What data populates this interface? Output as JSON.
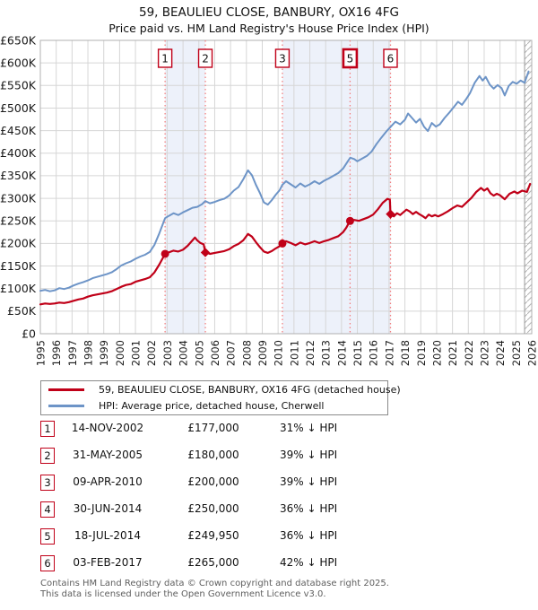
{
  "title": "59, BEAULIEU CLOSE, BANBURY, OX16 4FG",
  "subtitle": "Price paid vs. HM Land Registry's House Price Index (HPI)",
  "legend": {
    "series1": "59, BEAULIEU CLOSE, BANBURY, OX16 4FG (detached house)",
    "series2": "HPI: Average price, detached house, Cherwell"
  },
  "colors": {
    "price_line": "#c00018",
    "hpi_line": "#6d94c7",
    "band": "#edf1fa",
    "dotted_line": "#f28080",
    "grid": "#d6d6d6",
    "plot_border": "#b0b0b0",
    "hatch": "#b5b5b5"
  },
  "transactions": [
    {
      "n": "1",
      "date": "14-NOV-2002",
      "price": "£177,000",
      "delta": "31% ↓ HPI",
      "year": 2002.87,
      "value": 177,
      "marker": "circle",
      "show_box": true,
      "bold_box": false
    },
    {
      "n": "2",
      "date": "31-MAY-2005",
      "price": "£180,000",
      "delta": "39% ↓ HPI",
      "year": 2005.41,
      "value": 180,
      "marker": "diamond",
      "show_box": true,
      "bold_box": false
    },
    {
      "n": "3",
      "date": "09-APR-2010",
      "price": "£200,000",
      "delta": "39% ↓ HPI",
      "year": 2010.27,
      "value": 200,
      "marker": "circle",
      "show_box": true,
      "bold_box": false
    },
    {
      "n": "4",
      "date": "30-JUN-2014",
      "price": "£250,000",
      "delta": "36% ↓ HPI",
      "year": 2014.49,
      "value": 250,
      "marker": "none",
      "show_box": false,
      "bold_box": false
    },
    {
      "n": "5",
      "date": "18-JUL-2014",
      "price": "£249,950",
      "delta": "36% ↓ HPI",
      "year": 2014.54,
      "value": 249.95,
      "marker": "circle",
      "show_box": true,
      "bold_box": true
    },
    {
      "n": "6",
      "date": "03-FEB-2017",
      "price": "£265,000",
      "delta": "42% ↓ HPI",
      "year": 2017.09,
      "value": 265,
      "marker": "diamond",
      "show_box": true,
      "bold_box": false
    }
  ],
  "footer": {
    "line1": "Contains HM Land Registry data © Crown copyright and database right 2025.",
    "line2": "This data is licensed under the Open Government Licence v3.0."
  },
  "chart_data": {
    "type": "line",
    "title": "59, BEAULIEU CLOSE, BANBURY, OX16 4FG",
    "subtitle": "Price paid vs. HM Land Registry's House Price Index (HPI)",
    "units": "GBP thousands",
    "x_axis": {
      "min": 1995,
      "max": 2026,
      "years": [
        "1995",
        "1996",
        "1997",
        "1998",
        "1999",
        "2000",
        "2001",
        "2002",
        "2003",
        "2004",
        "2005",
        "2006",
        "2007",
        "2008",
        "2009",
        "2010",
        "2011",
        "2012",
        "2013",
        "2014",
        "2015",
        "2016",
        "2017",
        "2018",
        "2019",
        "2020",
        "2021",
        "2022",
        "2023",
        "2024",
        "2025",
        "2026"
      ]
    },
    "y_axis": {
      "min": 0,
      "max": 650,
      "tick_step": 50,
      "tick_labels": [
        "£0",
        "£50K",
        "£100K",
        "£150K",
        "£200K",
        "£250K",
        "£300K",
        "£350K",
        "£400K",
        "£450K",
        "£500K",
        "£550K",
        "£600K",
        "£650K"
      ]
    },
    "bands": [
      [
        2002.87,
        2005.41
      ],
      [
        2010.27,
        2017.09
      ]
    ],
    "hatch_from": 2025.55,
    "legend_position": "below",
    "grid": true,
    "series": [
      {
        "name": "59, BEAULIEU CLOSE, BANBURY, OX16 4FG (detached house)",
        "color": "#c00018",
        "points": [
          [
            1995.0,
            65
          ],
          [
            1995.3,
            67
          ],
          [
            1995.6,
            66
          ],
          [
            1995.9,
            67
          ],
          [
            1996.2,
            69
          ],
          [
            1996.5,
            68
          ],
          [
            1996.8,
            70
          ],
          [
            1997.1,
            73
          ],
          [
            1997.4,
            76
          ],
          [
            1997.7,
            78
          ],
          [
            1998.0,
            82
          ],
          [
            1998.3,
            85
          ],
          [
            1998.6,
            87
          ],
          [
            1998.9,
            89
          ],
          [
            1999.2,
            91
          ],
          [
            1999.5,
            94
          ],
          [
            1999.8,
            99
          ],
          [
            2000.1,
            104
          ],
          [
            2000.4,
            108
          ],
          [
            2000.7,
            110
          ],
          [
            2001.0,
            115
          ],
          [
            2001.3,
            118
          ],
          [
            2001.6,
            121
          ],
          [
            2001.9,
            125
          ],
          [
            2002.2,
            136
          ],
          [
            2002.5,
            153
          ],
          [
            2002.87,
            177
          ],
          [
            2003.1,
            180
          ],
          [
            2003.4,
            184
          ],
          [
            2003.7,
            182
          ],
          [
            2004.0,
            186
          ],
          [
            2004.3,
            195
          ],
          [
            2004.6,
            207
          ],
          [
            2004.75,
            213
          ],
          [
            2004.9,
            207
          ],
          [
            2005.1,
            201
          ],
          [
            2005.3,
            198
          ],
          [
            2005.41,
            180
          ],
          [
            2005.7,
            177
          ],
          [
            2006.0,
            179
          ],
          [
            2006.3,
            181
          ],
          [
            2006.6,
            183
          ],
          [
            2006.9,
            187
          ],
          [
            2007.2,
            194
          ],
          [
            2007.5,
            199
          ],
          [
            2007.8,
            207
          ],
          [
            2008.1,
            221
          ],
          [
            2008.35,
            215
          ],
          [
            2008.6,
            203
          ],
          [
            2008.85,
            192
          ],
          [
            2009.1,
            182
          ],
          [
            2009.35,
            179
          ],
          [
            2009.6,
            183
          ],
          [
            2009.85,
            189
          ],
          [
            2010.1,
            194
          ],
          [
            2010.27,
            200
          ],
          [
            2010.5,
            205
          ],
          [
            2010.8,
            201
          ],
          [
            2011.1,
            196
          ],
          [
            2011.4,
            202
          ],
          [
            2011.7,
            198
          ],
          [
            2012.0,
            201
          ],
          [
            2012.3,
            205
          ],
          [
            2012.6,
            201
          ],
          [
            2012.9,
            205
          ],
          [
            2013.2,
            208
          ],
          [
            2013.5,
            212
          ],
          [
            2013.8,
            216
          ],
          [
            2014.1,
            225
          ],
          [
            2014.3,
            235
          ],
          [
            2014.54,
            250
          ],
          [
            2014.8,
            252
          ],
          [
            2015.1,
            250
          ],
          [
            2015.4,
            254
          ],
          [
            2015.7,
            258
          ],
          [
            2016.0,
            264
          ],
          [
            2016.3,
            276
          ],
          [
            2016.6,
            290
          ],
          [
            2016.9,
            299
          ],
          [
            2017.05,
            297
          ],
          [
            2017.09,
            265
          ],
          [
            2017.3,
            260
          ],
          [
            2017.5,
            267
          ],
          [
            2017.7,
            263
          ],
          [
            2017.9,
            269
          ],
          [
            2018.1,
            275
          ],
          [
            2018.3,
            271
          ],
          [
            2018.5,
            265
          ],
          [
            2018.7,
            270
          ],
          [
            2018.9,
            265
          ],
          [
            2019.1,
            261
          ],
          [
            2019.3,
            256
          ],
          [
            2019.5,
            264
          ],
          [
            2019.7,
            260
          ],
          [
            2019.9,
            263
          ],
          [
            2020.1,
            260
          ],
          [
            2020.4,
            265
          ],
          [
            2020.7,
            271
          ],
          [
            2021.0,
            278
          ],
          [
            2021.3,
            284
          ],
          [
            2021.6,
            281
          ],
          [
            2021.9,
            291
          ],
          [
            2022.2,
            301
          ],
          [
            2022.5,
            314
          ],
          [
            2022.8,
            323
          ],
          [
            2023.0,
            317
          ],
          [
            2023.2,
            322
          ],
          [
            2023.4,
            311
          ],
          [
            2023.6,
            306
          ],
          [
            2023.8,
            310
          ],
          [
            2024.0,
            307
          ],
          [
            2024.3,
            298
          ],
          [
            2024.6,
            310
          ],
          [
            2024.9,
            315
          ],
          [
            2025.1,
            311
          ],
          [
            2025.4,
            317
          ],
          [
            2025.7,
            314
          ],
          [
            2025.9,
            332
          ]
        ]
      },
      {
        "name": "HPI: Average price, detached house, Cherwell",
        "color": "#6d94c7",
        "points": [
          [
            1995.0,
            95
          ],
          [
            1995.3,
            97
          ],
          [
            1995.6,
            94
          ],
          [
            1995.9,
            96
          ],
          [
            1996.2,
            101
          ],
          [
            1996.5,
            99
          ],
          [
            1996.8,
            102
          ],
          [
            1997.1,
            107
          ],
          [
            1997.4,
            111
          ],
          [
            1997.7,
            114
          ],
          [
            1998.0,
            118
          ],
          [
            1998.3,
            123
          ],
          [
            1998.6,
            126
          ],
          [
            1998.9,
            129
          ],
          [
            1999.2,
            132
          ],
          [
            1999.5,
            136
          ],
          [
            1999.8,
            143
          ],
          [
            2000.1,
            151
          ],
          [
            2000.4,
            156
          ],
          [
            2000.7,
            160
          ],
          [
            2001.0,
            166
          ],
          [
            2001.3,
            171
          ],
          [
            2001.6,
            175
          ],
          [
            2001.9,
            181
          ],
          [
            2002.2,
            197
          ],
          [
            2002.5,
            222
          ],
          [
            2002.87,
            256
          ],
          [
            2003.1,
            261
          ],
          [
            2003.4,
            267
          ],
          [
            2003.7,
            263
          ],
          [
            2004.0,
            269
          ],
          [
            2004.3,
            274
          ],
          [
            2004.6,
            279
          ],
          [
            2004.9,
            281
          ],
          [
            2005.2,
            287
          ],
          [
            2005.41,
            294
          ],
          [
            2005.7,
            289
          ],
          [
            2006.0,
            292
          ],
          [
            2006.3,
            296
          ],
          [
            2006.6,
            299
          ],
          [
            2006.9,
            306
          ],
          [
            2007.2,
            317
          ],
          [
            2007.5,
            325
          ],
          [
            2007.8,
            342
          ],
          [
            2008.1,
            362
          ],
          [
            2008.35,
            351
          ],
          [
            2008.6,
            330
          ],
          [
            2008.85,
            312
          ],
          [
            2009.1,
            291
          ],
          [
            2009.35,
            286
          ],
          [
            2009.6,
            296
          ],
          [
            2009.85,
            308
          ],
          [
            2010.1,
            318
          ],
          [
            2010.27,
            330
          ],
          [
            2010.5,
            338
          ],
          [
            2010.8,
            331
          ],
          [
            2011.1,
            324
          ],
          [
            2011.4,
            333
          ],
          [
            2011.7,
            326
          ],
          [
            2012.0,
            331
          ],
          [
            2012.3,
            338
          ],
          [
            2012.6,
            332
          ],
          [
            2012.9,
            339
          ],
          [
            2013.2,
            344
          ],
          [
            2013.5,
            350
          ],
          [
            2013.8,
            356
          ],
          [
            2014.1,
            366
          ],
          [
            2014.4,
            382
          ],
          [
            2014.55,
            390
          ],
          [
            2014.8,
            387
          ],
          [
            2015.0,
            382
          ],
          [
            2015.3,
            388
          ],
          [
            2015.6,
            394
          ],
          [
            2015.9,
            404
          ],
          [
            2016.2,
            420
          ],
          [
            2016.5,
            434
          ],
          [
            2016.8,
            447
          ],
          [
            2017.09,
            458
          ],
          [
            2017.4,
            470
          ],
          [
            2017.7,
            464
          ],
          [
            2018.0,
            474
          ],
          [
            2018.2,
            488
          ],
          [
            2018.45,
            478
          ],
          [
            2018.7,
            468
          ],
          [
            2018.95,
            476
          ],
          [
            2019.2,
            459
          ],
          [
            2019.45,
            449
          ],
          [
            2019.7,
            467
          ],
          [
            2019.95,
            459
          ],
          [
            2020.2,
            464
          ],
          [
            2020.5,
            478
          ],
          [
            2020.8,
            490
          ],
          [
            2021.1,
            503
          ],
          [
            2021.35,
            514
          ],
          [
            2021.6,
            507
          ],
          [
            2021.85,
            519
          ],
          [
            2022.1,
            533
          ],
          [
            2022.4,
            556
          ],
          [
            2022.7,
            571
          ],
          [
            2022.9,
            561
          ],
          [
            2023.1,
            569
          ],
          [
            2023.35,
            552
          ],
          [
            2023.6,
            543
          ],
          [
            2023.85,
            551
          ],
          [
            2024.1,
            544
          ],
          [
            2024.3,
            528
          ],
          [
            2024.55,
            549
          ],
          [
            2024.8,
            558
          ],
          [
            2025.05,
            554
          ],
          [
            2025.3,
            561
          ],
          [
            2025.55,
            556
          ],
          [
            2025.8,
            581
          ]
        ]
      }
    ]
  }
}
